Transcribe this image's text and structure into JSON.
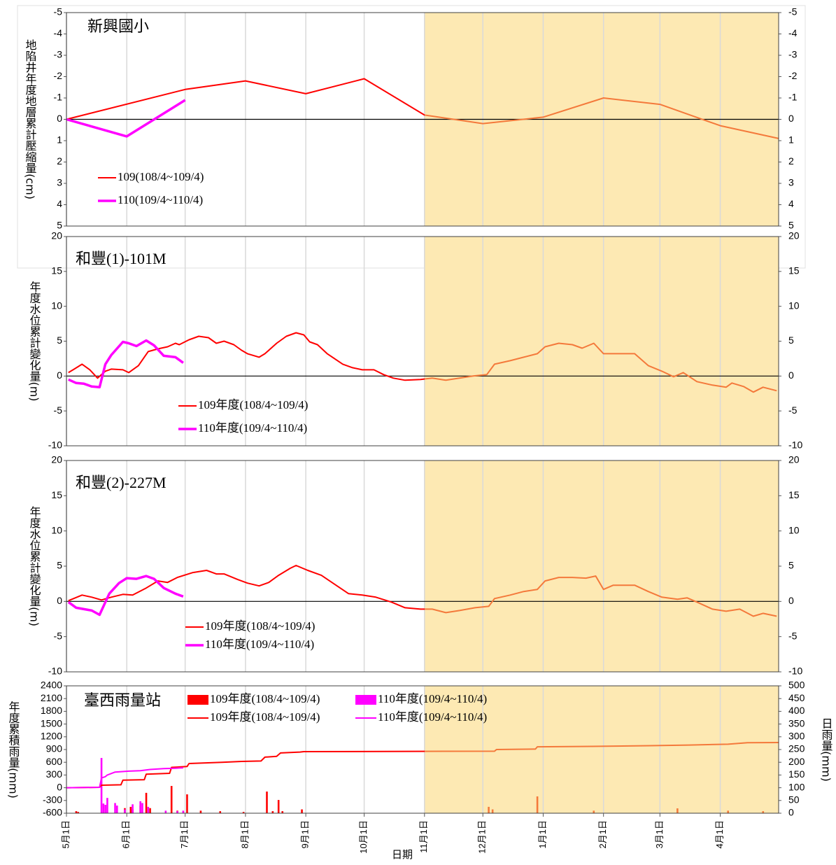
{
  "x_axis": {
    "label": "日期",
    "xlim": [
      0,
      366
    ],
    "xticks": [
      {
        "value": 0,
        "label": "5月1日"
      },
      {
        "value": 31,
        "label": "6月1日"
      },
      {
        "value": 61,
        "label": "7月1日"
      },
      {
        "value": 92,
        "label": "8月1日"
      },
      {
        "value": 123,
        "label": "9月1日"
      },
      {
        "value": 153,
        "label": "10月1日"
      },
      {
        "value": 184,
        "label": "11月1日"
      },
      {
        "value": 214,
        "label": "12月1日"
      },
      {
        "value": 245,
        "label": "1月1日"
      },
      {
        "value": 276,
        "label": "2月1日"
      },
      {
        "value": 305,
        "label": "3月1日"
      },
      {
        "value": 336,
        "label": "4月1日"
      }
    ],
    "highlight_from": 184,
    "highlight_color": "#fde9b3",
    "highlight_line_color": "#f4793b",
    "grid": true
  },
  "chart_data": [
    {
      "type": "line",
      "title": "新興國小",
      "ylabel": "地陷井年度地層累計壓縮量(cm)",
      "ylim": [
        5,
        -5
      ],
      "yticks": [
        -5,
        -4,
        -3,
        -2,
        -1,
        0,
        1,
        2,
        3,
        4,
        5
      ],
      "y2lim": [
        5,
        -5
      ],
      "y2ticks": [
        -5,
        -4,
        -3,
        -2,
        -1,
        0,
        1,
        2,
        3,
        4,
        5
      ],
      "tick_color": "#ff0000",
      "zero_line": true,
      "series": [
        {
          "name": "109(108/4~109/4)",
          "color": "#ff0000",
          "width": 2,
          "x": [
            0,
            61,
            92,
            123,
            153,
            184,
            214,
            245,
            276,
            305,
            336,
            366
          ],
          "values": [
            0,
            -1.4,
            -1.8,
            -1.2,
            -1.9,
            -0.2,
            0.2,
            -0.1,
            -1.0,
            -0.7,
            0.3,
            0.9
          ]
        },
        {
          "name": "110(109/4~110/4)",
          "color": "#ff00ff",
          "width": 3.5,
          "x": [
            0,
            31,
            61
          ],
          "values": [
            0,
            0.8,
            -0.9
          ]
        }
      ]
    },
    {
      "type": "line",
      "title": "和豐(1)-101M",
      "ylabel": "年度水位累計變化量(m)",
      "ylim": [
        -10,
        20
      ],
      "yticks": [
        -10,
        -5,
        0,
        5,
        10,
        15,
        20
      ],
      "y2lim": [
        -10,
        20
      ],
      "y2ticks": [
        -10,
        -5,
        0,
        5,
        10,
        15,
        20
      ],
      "tick_color": "#000000",
      "zero_line": true,
      "series": [
        {
          "name": "109年度(108/4~109/4)",
          "color": "#ff0000",
          "width": 2,
          "x": [
            1,
            4,
            8,
            12,
            16,
            20,
            23,
            29,
            32,
            37,
            42,
            47,
            52,
            56,
            58,
            63,
            68,
            73,
            77,
            81,
            86,
            90,
            93,
            99,
            102,
            108,
            113,
            118,
            122,
            125,
            129,
            134,
            142,
            147,
            152,
            158,
            163,
            168,
            174,
            182,
            188,
            195,
            202,
            209,
            216,
            220,
            228,
            235,
            242,
            246,
            253,
            260,
            265,
            271,
            276,
            281,
            292,
            299,
            306,
            312,
            317,
            324,
            332,
            339,
            342,
            348,
            353,
            358,
            365
          ],
          "values": [
            0.5,
            1.0,
            1.7,
            0.9,
            -0.3,
            0.7,
            1.0,
            0.9,
            0.5,
            1.5,
            3.5,
            3.9,
            4.2,
            4.7,
            4.5,
            5.2,
            5.7,
            5.5,
            4.7,
            5.0,
            4.5,
            3.7,
            3.2,
            2.7,
            3.2,
            4.7,
            5.7,
            6.2,
            5.9,
            4.9,
            4.5,
            3.2,
            1.7,
            1.2,
            0.9,
            0.9,
            0.2,
            -0.3,
            -0.6,
            -0.5,
            -0.3,
            -0.6,
            -0.3,
            0,
            0.2,
            1.7,
            2.2,
            2.7,
            3.2,
            4.2,
            4.7,
            4.5,
            4.0,
            4.7,
            3.2,
            3.2,
            3.2,
            1.5,
            0.7,
            -0.1,
            0.5,
            -0.8,
            -1.3,
            -1.6,
            -1.0,
            -1.5,
            -2.3,
            -1.6,
            -2.1
          ]
        },
        {
          "name": "110年度(109/4~110/4)",
          "color": "#ff00ff",
          "width": 3.5,
          "x": [
            1,
            5,
            9,
            13,
            17,
            20,
            23,
            29,
            32,
            36,
            41,
            45,
            50,
            56,
            60
          ],
          "values": [
            -0.5,
            -1.0,
            -1.1,
            -1.5,
            -1.6,
            1.7,
            3.0,
            4.9,
            4.7,
            4.3,
            5.1,
            4.4,
            2.9,
            2.7,
            1.9
          ]
        }
      ]
    },
    {
      "type": "line",
      "title": "和豐(2)-227M",
      "ylabel": "年度水位累計變化量(m)",
      "ylim": [
        -10,
        20
      ],
      "yticks": [
        -10,
        -5,
        0,
        5,
        10,
        15,
        20
      ],
      "y2lim": [
        -10,
        20
      ],
      "y2ticks": [
        -10,
        -5,
        0,
        5,
        10,
        15,
        20
      ],
      "tick_color": "#000000",
      "zero_line": true,
      "series": [
        {
          "name": "109年度(108/4~109/4)",
          "color": "#ff0000",
          "width": 2,
          "x": [
            1,
            8,
            13,
            18,
            23,
            29,
            34,
            41,
            47,
            52,
            57,
            65,
            72,
            77,
            81,
            88,
            93,
            99,
            104,
            109,
            115,
            118,
            124,
            131,
            138,
            145,
            152,
            159,
            167,
            174,
            182,
            188,
            195,
            202,
            210,
            217,
            220,
            228,
            235,
            242,
            246,
            253,
            260,
            267,
            272,
            276,
            281,
            292,
            299,
            306,
            314,
            319,
            324,
            332,
            339,
            346,
            353,
            358,
            365
          ],
          "values": [
            0.1,
            0.9,
            0.6,
            0.2,
            0.6,
            1.0,
            0.9,
            1.9,
            2.9,
            2.7,
            3.4,
            4.1,
            4.4,
            3.9,
            3.9,
            3.1,
            2.6,
            2.2,
            2.7,
            3.7,
            4.7,
            5.1,
            4.4,
            3.7,
            2.4,
            1.1,
            0.9,
            0.6,
            -0.1,
            -0.9,
            -1.1,
            -1.1,
            -1.6,
            -1.3,
            -0.9,
            -0.7,
            0.4,
            0.9,
            1.4,
            1.7,
            2.9,
            3.4,
            3.4,
            3.3,
            3.6,
            1.7,
            2.3,
            2.3,
            1.4,
            0.6,
            0.3,
            0.5,
            -0.1,
            -1.1,
            -1.4,
            -1.1,
            -2.1,
            -1.7,
            -2.1
          ]
        },
        {
          "name": "110年度(109/4~110/4)",
          "color": "#ff00ff",
          "width": 3.5,
          "x": [
            1,
            5,
            13,
            17,
            22,
            27,
            31,
            36,
            41,
            45,
            50,
            56,
            60
          ],
          "values": [
            -0.1,
            -0.9,
            -1.3,
            -1.9,
            1.1,
            2.6,
            3.3,
            3.2,
            3.6,
            3.2,
            1.9,
            1.1,
            0.7
          ]
        }
      ]
    },
    {
      "type": "combo",
      "title": "臺西雨量站",
      "ylabel": "年度累積雨量(mm)",
      "y2label": "日雨量(mm)",
      "ylim": [
        -600,
        2400
      ],
      "yticks": [
        -600,
        -300,
        0,
        300,
        600,
        900,
        1200,
        1500,
        1800,
        2100,
        2400
      ],
      "y2lim": [
        0,
        500
      ],
      "y2ticks": [
        0,
        50,
        100,
        150,
        200,
        250,
        300,
        350,
        400,
        450,
        500
      ],
      "tick_color": "#000000",
      "zero_line": false,
      "bars": [
        {
          "name": "109年度(108/4~109/4)",
          "color": "#ff0000",
          "axis": "y2",
          "x": [
            5,
            6,
            30,
            33,
            34,
            38,
            41,
            43,
            54,
            57,
            62,
            69,
            79,
            91,
            103,
            106,
            109,
            111,
            121,
            217,
            219,
            242,
            271,
            314,
            340,
            358
          ],
          "values": [
            8,
            5,
            20,
            25,
            15,
            30,
            80,
            20,
            107,
            10,
            74,
            10,
            8,
            5,
            85,
            8,
            52,
            8,
            15,
            25,
            15,
            66,
            10,
            19,
            10,
            8
          ]
        },
        {
          "name": "110年度(109/4~110/4)",
          "color": "#ff00ff",
          "axis": "y2",
          "x": [
            18,
            19,
            20,
            21,
            25,
            26,
            30,
            34,
            38,
            39,
            42,
            51,
            57,
            60
          ],
          "values": [
            217,
            38,
            33,
            60,
            40,
            30,
            15,
            35,
            47,
            40,
            25,
            10,
            8,
            10
          ]
        }
      ],
      "series": [
        {
          "name": "109年度(108/4~109/4)",
          "color": "#ff0000",
          "width": 2,
          "x": [
            0,
            17,
            18,
            28,
            29,
            40,
            41,
            53,
            54,
            62,
            63,
            80,
            90,
            100,
            102,
            108,
            110,
            120,
            122,
            220,
            221,
            241,
            242,
            270,
            300,
            320,
            340,
            350,
            366
          ],
          "values": [
            0,
            10,
            60,
            70,
            180,
            190,
            320,
            340,
            480,
            500,
            570,
            600,
            620,
            630,
            720,
            740,
            820,
            840,
            850,
            860,
            900,
            910,
            965,
            975,
            990,
            1005,
            1025,
            1060,
            1065
          ]
        },
        {
          "name": "110年度(109/4~110/4)",
          "color": "#ff00ff",
          "width": 2,
          "x": [
            0,
            17,
            18,
            20,
            21,
            25,
            32,
            38,
            43,
            50,
            56,
            60
          ],
          "values": [
            0,
            10,
            230,
            260,
            300,
            370,
            390,
            400,
            430,
            450,
            460,
            470
          ]
        }
      ]
    }
  ]
}
